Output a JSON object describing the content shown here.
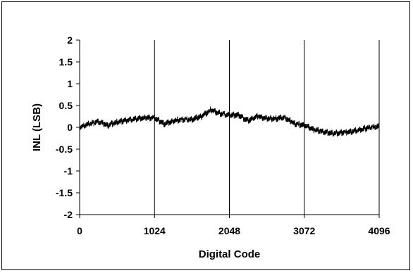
{
  "chart_data": {
    "type": "line",
    "title": "",
    "xlabel": "Digital Code",
    "ylabel": "INL (LSB)",
    "xlim": [
      0,
      4096
    ],
    "ylim": [
      -2,
      2
    ],
    "x_ticks": [
      0,
      1024,
      2048,
      3072,
      4096
    ],
    "y_ticks": [
      2,
      1.5,
      1,
      0.5,
      0,
      -0.5,
      -1,
      -1.5,
      -2
    ],
    "x_tick_labels": [
      "0",
      "1024",
      "2048",
      "3072",
      "4096"
    ],
    "y_tick_labels": [
      "2",
      "1.5",
      "1",
      "0.5",
      "0",
      "-0.5",
      "-1",
      "-1.5",
      "-2"
    ],
    "grid": "vertical",
    "line_color": "#000000",
    "series": [
      {
        "x": [
          0,
          128,
          256,
          384,
          512,
          640,
          768,
          896,
          1024,
          1152,
          1280,
          1408,
          1536,
          1664,
          1792,
          1920,
          2048,
          2176,
          2304,
          2432,
          2560,
          2688,
          2816,
          2944,
          3072,
          3200,
          3328,
          3456,
          3584,
          3712,
          3840,
          3968,
          4096
        ],
        "y": [
          0.0,
          0.08,
          0.13,
          0.05,
          0.12,
          0.16,
          0.2,
          0.22,
          0.22,
          0.08,
          0.15,
          0.18,
          0.18,
          0.25,
          0.4,
          0.32,
          0.28,
          0.28,
          0.15,
          0.25,
          0.2,
          0.2,
          0.22,
          0.08,
          0.05,
          -0.05,
          -0.1,
          -0.14,
          -0.12,
          -0.1,
          -0.05,
          0.0,
          0.02
        ],
        "noise_amplitude": 0.12
      }
    ]
  }
}
